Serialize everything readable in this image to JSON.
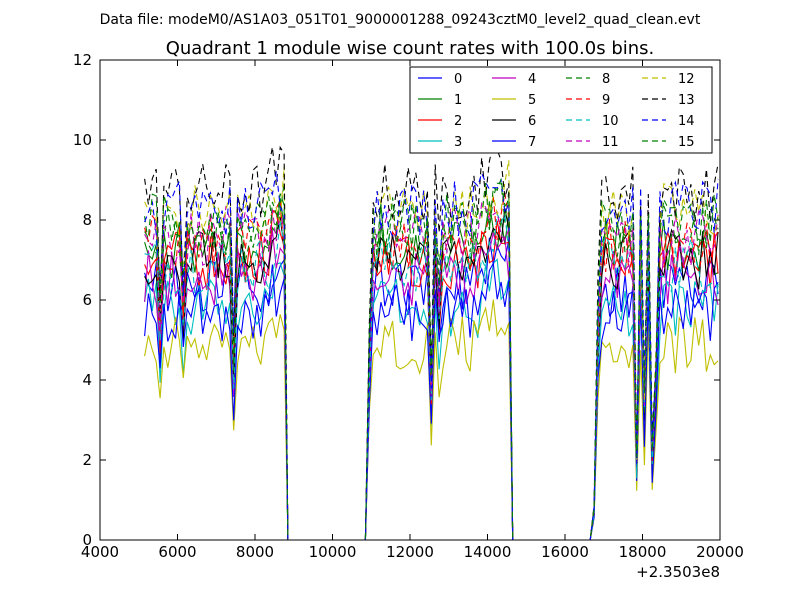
{
  "chart_data": {
    "type": "line",
    "suptitle": "Data file: modeM0/AS1A03_051T01_9000001288_09243cztM0_level2_quad_clean.evt",
    "title": "Quadrant 1 module wise count rates with 100.0s bins.",
    "xlabel": "",
    "ylabel": "",
    "x_offset_label": "+2.3503e8",
    "xlim": [
      4000,
      20000
    ],
    "ylim": [
      0,
      12
    ],
    "x_ticks": [
      4000,
      6000,
      8000,
      10000,
      12000,
      14000,
      16000,
      18000,
      20000
    ],
    "x_tick_labels": [
      "4000",
      "6000",
      "8000",
      "10000",
      "12000",
      "14000",
      "16000",
      "18000",
      "20000"
    ],
    "y_ticks": [
      0,
      2,
      4,
      6,
      8,
      10,
      12
    ],
    "y_tick_labels": [
      "0",
      "2",
      "4",
      "6",
      "8",
      "10",
      "12"
    ],
    "grid": false,
    "legend_position": "top-right",
    "legend_columns": 4,
    "bin_seconds": 100,
    "segments": [
      {
        "start": 5150,
        "end": 8750
      },
      {
        "start": 10950,
        "end": 14550
      },
      {
        "start": 16750,
        "end": 19950
      }
    ],
    "gaps_zero": [
      {
        "start": 8850,
        "end": 10850
      },
      {
        "start": 14650,
        "end": 16650
      }
    ],
    "dips": [
      {
        "x": 5550,
        "depth": 0.72
      },
      {
        "x": 6150,
        "depth": 0.78
      },
      {
        "x": 7450,
        "depth": 0.58
      },
      {
        "x": 12550,
        "depth": 0.5
      },
      {
        "x": 12750,
        "depth": 0.82
      },
      {
        "x": 17850,
        "depth": 0.25
      },
      {
        "x": 18050,
        "depth": 0.45
      },
      {
        "x": 18250,
        "depth": 0.28
      },
      {
        "x": 18350,
        "depth": 0.55
      }
    ],
    "ramps": [
      {
        "x": 10950,
        "factor": 0.6
      },
      {
        "x": 16750,
        "factor": 0.1
      },
      {
        "x": 16850,
        "factor": 0.7
      }
    ],
    "series": [
      {
        "name": "0",
        "color": "#0000ff",
        "dash": "solid",
        "level": 6.3
      },
      {
        "name": "1",
        "color": "#008000",
        "dash": "solid",
        "level": 7.3
      },
      {
        "name": "2",
        "color": "#ff0000",
        "dash": "solid",
        "level": 7.0
      },
      {
        "name": "3",
        "color": "#00bfbf",
        "dash": "solid",
        "level": 5.8
      },
      {
        "name": "4",
        "color": "#bf00bf",
        "dash": "solid",
        "level": 6.6
      },
      {
        "name": "5",
        "color": "#bfbf00",
        "dash": "solid",
        "level": 4.9
      },
      {
        "name": "6",
        "color": "#000000",
        "dash": "solid",
        "level": 7.0
      },
      {
        "name": "7",
        "color": "#0000ff",
        "dash": "solid",
        "level": 5.7
      },
      {
        "name": "8",
        "color": "#008000",
        "dash": "dashed",
        "level": 7.7
      },
      {
        "name": "9",
        "color": "#ff0000",
        "dash": "dashed",
        "level": 7.4
      },
      {
        "name": "10",
        "color": "#00bfbf",
        "dash": "dashed",
        "level": 6.9
      },
      {
        "name": "11",
        "color": "#bf00bf",
        "dash": "dashed",
        "level": 7.6
      },
      {
        "name": "12",
        "color": "#bfbf00",
        "dash": "dashed",
        "level": 8.2
      },
      {
        "name": "13",
        "color": "#000000",
        "dash": "dashed",
        "level": 8.7
      },
      {
        "name": "14",
        "color": "#0000ff",
        "dash": "dashed",
        "level": 8.3
      },
      {
        "name": "15",
        "color": "#008000",
        "dash": "dashed",
        "level": 7.9
      }
    ]
  }
}
